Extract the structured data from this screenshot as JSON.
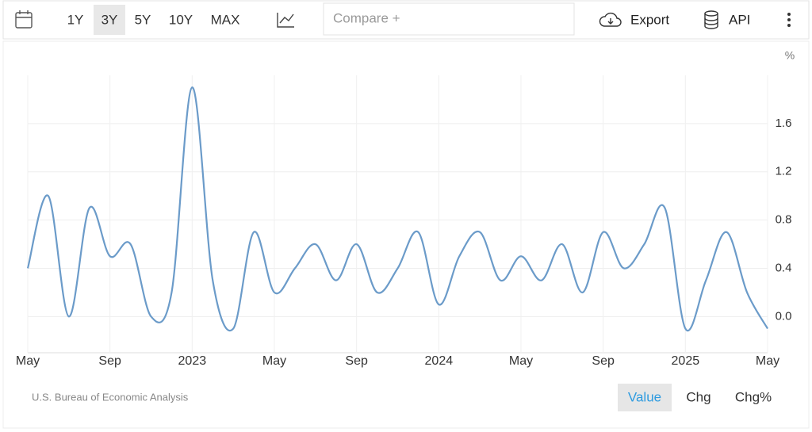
{
  "toolbar": {
    "ranges": [
      "1Y",
      "3Y",
      "5Y",
      "10Y",
      "MAX"
    ],
    "selected_range": "3Y",
    "compare": "Compare +",
    "export": "Export",
    "api": "API"
  },
  "chart_data": {
    "type": "line",
    "y_unit": "%",
    "categories": [
      "May",
      null,
      null,
      null,
      "Sep",
      null,
      null,
      null,
      "2023",
      null,
      null,
      null,
      "May",
      null,
      null,
      null,
      "Sep",
      null,
      null,
      null,
      "2024",
      null,
      null,
      null,
      "May",
      null,
      null,
      null,
      "Sep",
      null,
      null,
      null,
      "2025",
      null,
      null,
      null,
      "May"
    ],
    "values": [
      0.4,
      1.0,
      0.0,
      0.9,
      0.5,
      0.6,
      0.0,
      0.2,
      1.9,
      0.3,
      -0.1,
      0.7,
      0.2,
      0.4,
      0.6,
      0.3,
      0.6,
      0.2,
      0.4,
      0.7,
      0.1,
      0.5,
      0.7,
      0.3,
      0.5,
      0.3,
      0.6,
      0.2,
      0.7,
      0.4,
      0.6,
      0.9,
      -0.1,
      0.3,
      0.7,
      0.2,
      -0.1
    ],
    "color": "#6b9bc9",
    "ylim": [
      -0.3,
      2.0
    ],
    "yticks": [
      {
        "value": 0,
        "label": "0.0"
      },
      0.4,
      0.8,
      1.2,
      1.6
    ],
    "grid": true
  },
  "source": "U.S. Bureau of Economic Analysis",
  "modes": [
    "Value",
    "Chg",
    "Chg%"
  ],
  "selected_mode": "Value"
}
